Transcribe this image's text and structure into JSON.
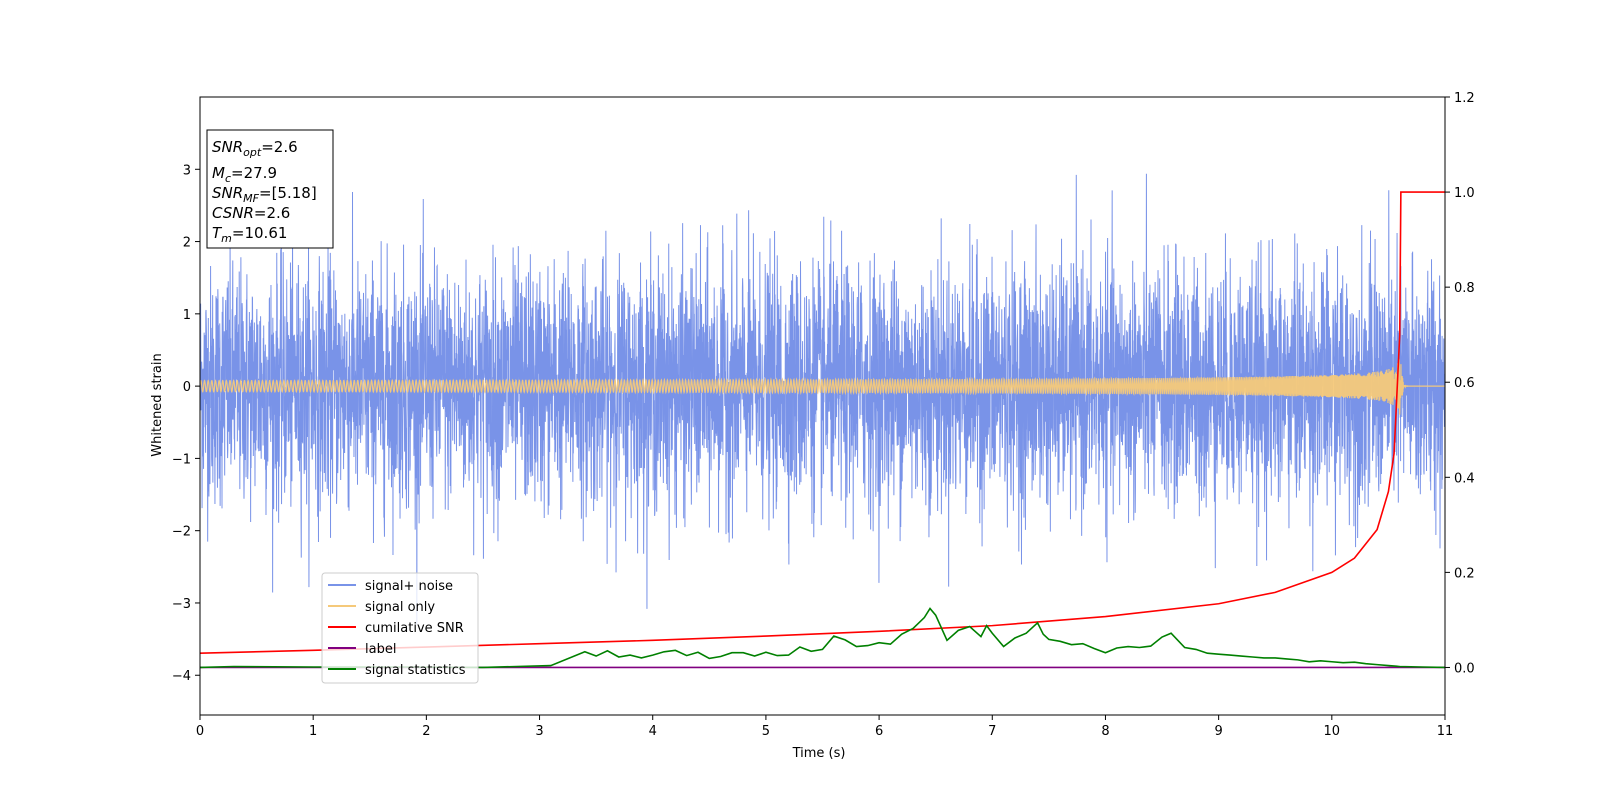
{
  "chart_data": {
    "type": "line",
    "xlabel": "Time (s)",
    "ylabel": "Whitened strain",
    "xlim": [
      0,
      11
    ],
    "ylim": [
      -4.55,
      4.0
    ],
    "y2lim": [
      -0.1,
      1.2
    ],
    "x_ticks": [
      "0",
      "1",
      "2",
      "3",
      "4",
      "5",
      "6",
      "7",
      "8",
      "9",
      "10",
      "11"
    ],
    "y_ticks": [
      "−4",
      "−3",
      "−2",
      "−1",
      "0",
      "1",
      "2",
      "3"
    ],
    "y_tick_values": [
      -4,
      -3,
      -2,
      -1,
      0,
      1,
      2,
      3
    ],
    "y2_ticks": [
      "0.0",
      "0.2",
      "0.4",
      "0.6",
      "0.8",
      "1.0",
      "1.2"
    ],
    "y2_tick_values": [
      0.0,
      0.2,
      0.4,
      0.6,
      0.8,
      1.0,
      1.2
    ],
    "info_box": {
      "snr_opt_sym": "SNR",
      "snr_opt_sub": "opt",
      "snr_opt_val": "=2.6",
      "mc_sym": "M",
      "mc_sub": "c",
      "mc_val": "=27.9",
      "snr_mf_sym": "SNR",
      "snr_mf_sub": "MF",
      "snr_mf_val": "=[5.18]",
      "csnr_sym": "CSNR",
      "csnr_val": "=2.6",
      "tm_sym": "T",
      "tm_sub": "m",
      "tm_val": "=10.61"
    },
    "series": [
      {
        "name": "signal+ noise",
        "color": "#7993e8",
        "axis": "left",
        "kind": "noise",
        "std": 0.82,
        "x_range": [
          0,
          11
        ]
      },
      {
        "name": "signal only",
        "color": "#f5c97a",
        "axis": "left",
        "kind": "chirp",
        "merger_time": 10.61,
        "peak_amp": 0.55
      },
      {
        "name": "cumilative SNR",
        "color": "#ff0000",
        "axis": "right",
        "x": [
          0,
          1,
          2,
          3,
          4,
          5,
          6,
          7,
          8,
          9,
          9.5,
          10,
          10.2,
          10.4,
          10.5,
          10.55,
          10.6,
          10.61,
          10.65,
          11
        ],
        "y": [
          0.03,
          0.036,
          0.043,
          0.05,
          0.057,
          0.066,
          0.076,
          0.088,
          0.107,
          0.134,
          0.158,
          0.2,
          0.23,
          0.29,
          0.37,
          0.45,
          0.7,
          1.0,
          1.0,
          1.0
        ]
      },
      {
        "name": "label",
        "color": "#800080",
        "axis": "right",
        "x": [
          0,
          11
        ],
        "y": [
          0,
          0
        ]
      },
      {
        "name": "signal statistics",
        "color": "#008000",
        "axis": "right",
        "x": [
          0,
          0.3,
          1,
          1.8,
          2.5,
          3.1,
          3.4,
          3.5,
          3.6,
          3.7,
          3.8,
          3.9,
          4.0,
          4.1,
          4.2,
          4.3,
          4.4,
          4.5,
          4.6,
          4.7,
          4.8,
          4.9,
          5.0,
          5.1,
          5.2,
          5.3,
          5.4,
          5.5,
          5.6,
          5.7,
          5.8,
          5.9,
          6.0,
          6.1,
          6.2,
          6.3,
          6.4,
          6.45,
          6.5,
          6.6,
          6.7,
          6.8,
          6.9,
          6.95,
          7.0,
          7.1,
          7.2,
          7.3,
          7.4,
          7.45,
          7.5,
          7.6,
          7.7,
          7.8,
          7.9,
          8.0,
          8.1,
          8.2,
          8.3,
          8.4,
          8.5,
          8.58,
          8.7,
          8.8,
          8.9,
          9.0,
          9.1,
          9.2,
          9.3,
          9.4,
          9.5,
          9.6,
          9.7,
          9.8,
          9.9,
          10.0,
          10.1,
          10.2,
          10.3,
          10.4,
          10.5,
          10.6,
          10.8,
          11
        ],
        "y": [
          0.0,
          0.002,
          0.001,
          0.001,
          0.0,
          0.004,
          0.033,
          0.024,
          0.035,
          0.022,
          0.026,
          0.02,
          0.026,
          0.033,
          0.036,
          0.025,
          0.032,
          0.019,
          0.023,
          0.031,
          0.031,
          0.024,
          0.032,
          0.025,
          0.026,
          0.043,
          0.034,
          0.038,
          0.066,
          0.058,
          0.044,
          0.046,
          0.052,
          0.049,
          0.07,
          0.082,
          0.105,
          0.124,
          0.11,
          0.057,
          0.078,
          0.086,
          0.065,
          0.088,
          0.072,
          0.044,
          0.062,
          0.072,
          0.094,
          0.07,
          0.059,
          0.055,
          0.048,
          0.05,
          0.04,
          0.031,
          0.041,
          0.044,
          0.042,
          0.045,
          0.064,
          0.072,
          0.042,
          0.038,
          0.03,
          0.028,
          0.026,
          0.024,
          0.022,
          0.02,
          0.02,
          0.018,
          0.016,
          0.012,
          0.014,
          0.012,
          0.01,
          0.011,
          0.008,
          0.006,
          0.004,
          0.002,
          0.001,
          0.0
        ]
      }
    ],
    "legend_position": "lower-left"
  }
}
